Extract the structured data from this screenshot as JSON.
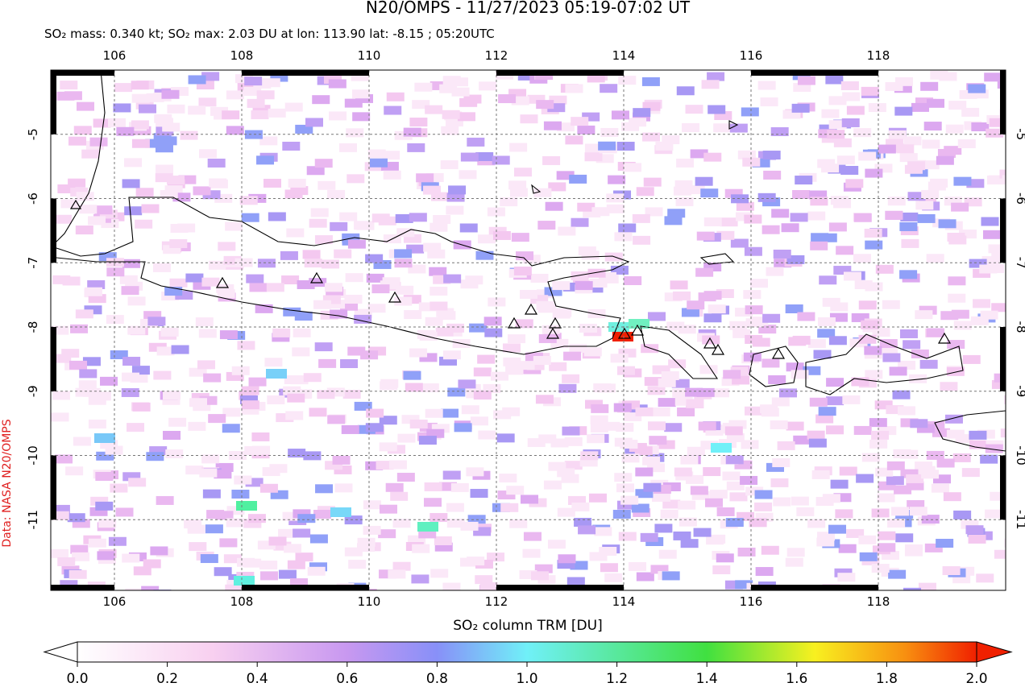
{
  "title": "N20/OMPS - 11/27/2023 05:19-07:02 UT",
  "subtitle": "SO₂ mass: 0.340 kt; SO₂ max: 2.03 DU at lon: 113.90 lat: -8.15 ; 05:20UTC",
  "credit": "Data: NASA N20/OMPS",
  "colorbar_label": "SO₂ column TRM [DU]",
  "map": {
    "lonlim": [
      105,
      120
    ],
    "latlim": [
      -4,
      -12.1
    ],
    "lon_ticks": [
      106,
      108,
      110,
      112,
      114,
      116,
      118
    ],
    "lat_ticks": [
      -5,
      -6,
      -7,
      -8,
      -9,
      -10,
      -11
    ]
  },
  "colorbar": {
    "lim": [
      0,
      2
    ],
    "ticks": [
      {
        "value": 0,
        "label": "0.0"
      },
      {
        "value": 0.2,
        "label": "0.2"
      },
      {
        "value": 0.4,
        "label": "0.4"
      },
      {
        "value": 0.6,
        "label": "0.6"
      },
      {
        "value": 0.8,
        "label": "0.8"
      },
      {
        "value": 1,
        "label": "1.0"
      },
      {
        "value": 1.2,
        "label": "1.2"
      },
      {
        "value": 1.4,
        "label": "1.4"
      },
      {
        "value": 1.6,
        "label": "1.6"
      },
      {
        "value": 1.8,
        "label": "1.8"
      },
      {
        "value": 2,
        "label": "2.0"
      }
    ]
  }
}
